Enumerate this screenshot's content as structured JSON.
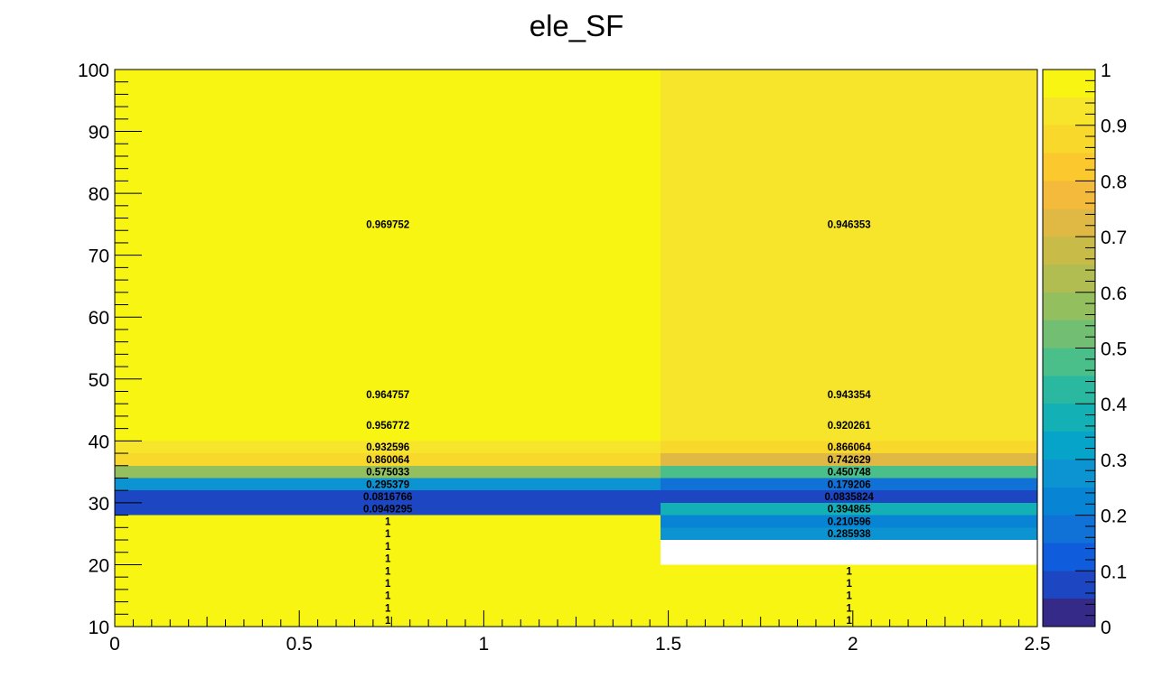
{
  "chart_data": {
    "type": "heatmap",
    "title": "ele_SF",
    "xlabel": "",
    "ylabel": "",
    "xlim": [
      0,
      2.5
    ],
    "ylim": [
      10,
      100
    ],
    "zlim": [
      0,
      1
    ],
    "x_ticks": [
      0,
      0.5,
      1,
      1.5,
      2,
      2.5
    ],
    "x_tick_labels": [
      "0",
      "0.5",
      "1",
      "1.5",
      "2",
      "2.5"
    ],
    "y_ticks": [
      10,
      20,
      30,
      40,
      50,
      60,
      70,
      80,
      90,
      100
    ],
    "y_tick_labels": [
      "10",
      "20",
      "30",
      "40",
      "50",
      "60",
      "70",
      "80",
      "90",
      "100"
    ],
    "z_ticks": [
      0,
      0.1,
      0.2,
      0.3,
      0.4,
      0.5,
      0.6,
      0.7,
      0.8,
      0.9,
      1
    ],
    "z_tick_labels": [
      "0",
      "0.1",
      "0.2",
      "0.3",
      "0.4",
      "0.5",
      "0.6",
      "0.7",
      "0.8",
      "0.9",
      "1"
    ],
    "palette": [
      "#352a87",
      "#1c46c2",
      "#0f5cdd",
      "#1072d7",
      "#0884d5",
      "#0b94d1",
      "#06a4c8",
      "#13b0b5",
      "#2ab9a0",
      "#4bbf89",
      "#72bf74",
      "#94bf5f",
      "#b1bd51",
      "#c9bb48",
      "#e0b945",
      "#f4ba3c",
      "#fbc82d",
      "#f8d82b",
      "#f6e52a",
      "#f8f512"
    ],
    "columns": [
      {
        "x_range": [
          0,
          1.479
        ],
        "label_x": 0.74,
        "cells": [
          {
            "y_range": [
              10,
              12
            ],
            "value": 1,
            "label": "1"
          },
          {
            "y_range": [
              12,
              14
            ],
            "value": 1,
            "label": "1"
          },
          {
            "y_range": [
              14,
              16
            ],
            "value": 1,
            "label": "1"
          },
          {
            "y_range": [
              16,
              18
            ],
            "value": 1,
            "label": "1"
          },
          {
            "y_range": [
              18,
              20
            ],
            "value": 1,
            "label": "1"
          },
          {
            "y_range": [
              20,
              22
            ],
            "value": 1,
            "label": "1"
          },
          {
            "y_range": [
              22,
              24
            ],
            "value": 1,
            "label": "1"
          },
          {
            "y_range": [
              24,
              26
            ],
            "value": 1,
            "label": "1"
          },
          {
            "y_range": [
              26,
              28
            ],
            "value": 1,
            "label": "1"
          },
          {
            "y_range": [
              28,
              30
            ],
            "value": 0.0949295,
            "label": "0.0949295"
          },
          {
            "y_range": [
              30,
              32
            ],
            "value": 0.0816766,
            "label": "0.0816766"
          },
          {
            "y_range": [
              32,
              34
            ],
            "value": 0.295379,
            "label": "0.295379"
          },
          {
            "y_range": [
              34,
              36
            ],
            "value": 0.575033,
            "label": "0.575033"
          },
          {
            "y_range": [
              36,
              38
            ],
            "value": 0.860064,
            "label": "0.860064"
          },
          {
            "y_range": [
              38,
              40
            ],
            "value": 0.932596,
            "label": "0.932596"
          },
          {
            "y_range": [
              40,
              45
            ],
            "value": 0.956772,
            "label": "0.956772"
          },
          {
            "y_range": [
              45,
              50
            ],
            "value": 0.964757,
            "label": "0.964757"
          },
          {
            "y_range": [
              50,
              100
            ],
            "value": 0.969752,
            "label": "0.969752"
          }
        ]
      },
      {
        "x_range": [
          1.479,
          2.5
        ],
        "label_x": 1.99,
        "cells": [
          {
            "y_range": [
              10,
              12
            ],
            "value": 1,
            "label": "1"
          },
          {
            "y_range": [
              12,
              14
            ],
            "value": 1,
            "label": "1"
          },
          {
            "y_range": [
              14,
              16
            ],
            "value": 1,
            "label": "1"
          },
          {
            "y_range": [
              16,
              18
            ],
            "value": 1,
            "label": "1"
          },
          {
            "y_range": [
              18,
              20
            ],
            "value": 1,
            "label": "1"
          },
          {
            "y_range": [
              24,
              26
            ],
            "value": 0.285938,
            "label": "0.285938"
          },
          {
            "y_range": [
              26,
              28
            ],
            "value": 0.210596,
            "label": "0.210596"
          },
          {
            "y_range": [
              28,
              30
            ],
            "value": 0.394865,
            "label": "0.394865"
          },
          {
            "y_range": [
              30,
              32
            ],
            "value": 0.0835824,
            "label": "0.0835824"
          },
          {
            "y_range": [
              32,
              34
            ],
            "value": 0.179206,
            "label": "0.179206"
          },
          {
            "y_range": [
              34,
              36
            ],
            "value": 0.450748,
            "label": "0.450748"
          },
          {
            "y_range": [
              36,
              38
            ],
            "value": 0.742629,
            "label": "0.742629"
          },
          {
            "y_range": [
              38,
              40
            ],
            "value": 0.866064,
            "label": "0.866064"
          },
          {
            "y_range": [
              40,
              45
            ],
            "value": 0.920261,
            "label": "0.920261"
          },
          {
            "y_range": [
              45,
              50
            ],
            "value": 0.943354,
            "label": "0.943354"
          },
          {
            "y_range": [
              50,
              100
            ],
            "value": 0.946353,
            "label": "0.946353"
          }
        ]
      }
    ]
  }
}
